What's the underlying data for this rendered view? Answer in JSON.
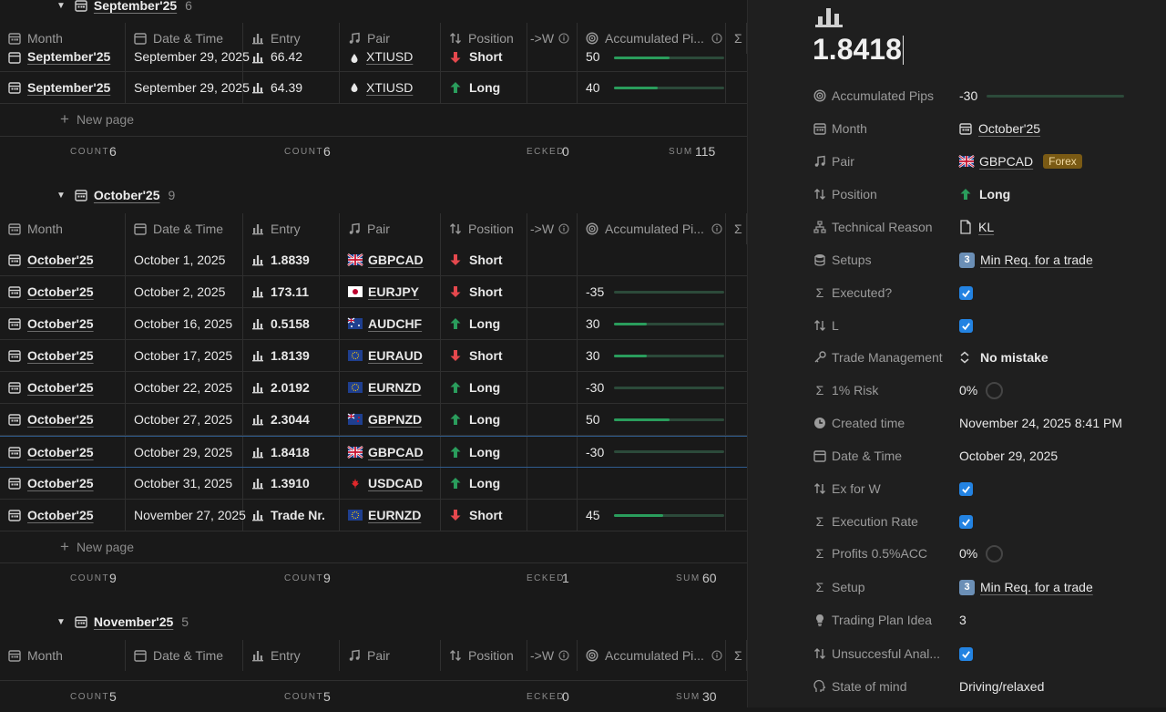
{
  "table": {
    "columns": {
      "month": "Month",
      "date": "Date & Time",
      "entry": "Entry",
      "pair": "Pair",
      "position": "Position",
      "w": "->W",
      "acc": "Accumulated Pi...",
      "sigma": "Σ"
    },
    "new_page": "New page",
    "groups": [
      {
        "title": "September'25",
        "count": "6",
        "rows": [
          {
            "month": "September'25",
            "date": "September 29, 2025",
            "entry": "66.42",
            "pair": "XTIUSD",
            "position": "Short",
            "acc": "50",
            "fill": 0.5
          },
          {
            "month": "September'25",
            "date": "September 29, 2025",
            "entry": "64.39",
            "pair": "XTIUSD",
            "position": "Long",
            "acc": "40",
            "fill": 0.4
          }
        ],
        "footer": {
          "count1_label": "COUNT",
          "count1": "6",
          "count2_label": "COUNT",
          "count2": "6",
          "checked_label": "ECKED",
          "checked": "0",
          "sum_label": "SUM",
          "sum": "115"
        }
      },
      {
        "title": "October'25",
        "count": "9",
        "rows": [
          {
            "month": "October'25",
            "date": "October 1, 2025",
            "entry": "1.8839",
            "pair": "GBPCAD",
            "position": "Short",
            "acc": "",
            "fill": null
          },
          {
            "month": "October'25",
            "date": "October 2, 2025",
            "entry": "173.11",
            "pair": "EURJPY",
            "position": "Short",
            "acc": "-35",
            "fill": 0
          },
          {
            "month": "October'25",
            "date": "October 16, 2025",
            "entry": "0.5158",
            "pair": "AUDCHF",
            "position": "Long",
            "acc": "30",
            "fill": 0.3
          },
          {
            "month": "October'25",
            "date": "October 17, 2025",
            "entry": "1.8139",
            "pair": "EURAUD",
            "position": "Short",
            "acc": "30",
            "fill": 0.3
          },
          {
            "month": "October'25",
            "date": "October 22, 2025",
            "entry": "2.0192",
            "pair": "EURNZD",
            "position": "Long",
            "acc": "-30",
            "fill": 0
          },
          {
            "month": "October'25",
            "date": "October 27, 2025",
            "entry": "2.3044",
            "pair": "GBPNZD",
            "position": "Long",
            "acc": "50",
            "fill": 0.5
          },
          {
            "month": "October'25",
            "date": "October 29, 2025",
            "entry": "1.8418",
            "pair": "GBPCAD",
            "position": "Long",
            "acc": "-30",
            "fill": 0
          },
          {
            "month": "October'25",
            "date": "October 31, 2025",
            "entry": "1.3910",
            "pair": "USDCAD",
            "position": "Long",
            "acc": "",
            "fill": null
          },
          {
            "month": "October'25",
            "date": "November 27, 2025",
            "entry": "Trade Nr.",
            "pair": "EURNZD",
            "position": "Short",
            "acc": "45",
            "fill": 0.45
          }
        ],
        "footer": {
          "count1_label": "COUNT",
          "count1": "9",
          "count2_label": "COUNT",
          "count2": "9",
          "checked_label": "ECKED",
          "checked": "1",
          "sum_label": "SUM",
          "sum": "60"
        }
      },
      {
        "title": "November'25",
        "count": "5",
        "footer": {
          "count1_label": "COUNT",
          "count1": "5",
          "count2_label": "COUNT",
          "count2": "5",
          "checked_label": "ECKED",
          "checked": "0",
          "sum_label": "SUM",
          "sum": "30"
        }
      }
    ]
  },
  "detail": {
    "title": "1.8418",
    "props": {
      "acc_pips": {
        "name": "Accumulated Pips",
        "value": "-30"
      },
      "month": {
        "name": "Month",
        "value": "October'25"
      },
      "pair": {
        "name": "Pair",
        "value": "GBPCAD",
        "tag": "Forex"
      },
      "position": {
        "name": "Position",
        "value": "Long"
      },
      "tech_reason": {
        "name": "Technical Reason",
        "value": "KL"
      },
      "setups": {
        "name": "Setups",
        "badge": "3",
        "value": "Min Req. for a trade"
      },
      "executed": {
        "name": "Executed?",
        "checked": true
      },
      "l": {
        "name": "L",
        "checked": true
      },
      "trade_mgmt": {
        "name": "Trade Management",
        "value": "No mistake"
      },
      "risk": {
        "name": "1% Risk",
        "value": "0%"
      },
      "created": {
        "name": "Created time",
        "value": "November 24, 2025 8:41 PM"
      },
      "date_time": {
        "name": "Date & Time",
        "value": "October 29, 2025"
      },
      "ex_for_w": {
        "name": "Ex for W",
        "checked": true
      },
      "exec_rate": {
        "name": "Execution Rate",
        "checked": true
      },
      "profits": {
        "name": "Profits 0.5%ACC",
        "value": "0%"
      },
      "setup": {
        "name": "Setup",
        "badge": "3",
        "value": "Min Req. for a trade"
      },
      "plan_idea": {
        "name": "Trading Plan Idea",
        "value": "3"
      },
      "unsuccessful": {
        "name": "Unsuccesful Anal...",
        "checked": true
      },
      "state": {
        "name": "State of mind",
        "value": "Driving/relaxed"
      }
    }
  },
  "colors": {
    "bg": "#191919",
    "panel": "#1f1f1f",
    "long_arrow": "#2a9d5c",
    "short_arrow": "#e5484d",
    "checkbox": "#2383e2",
    "forex_tag": "#7a5a14",
    "selection": "#2f5c8f"
  }
}
